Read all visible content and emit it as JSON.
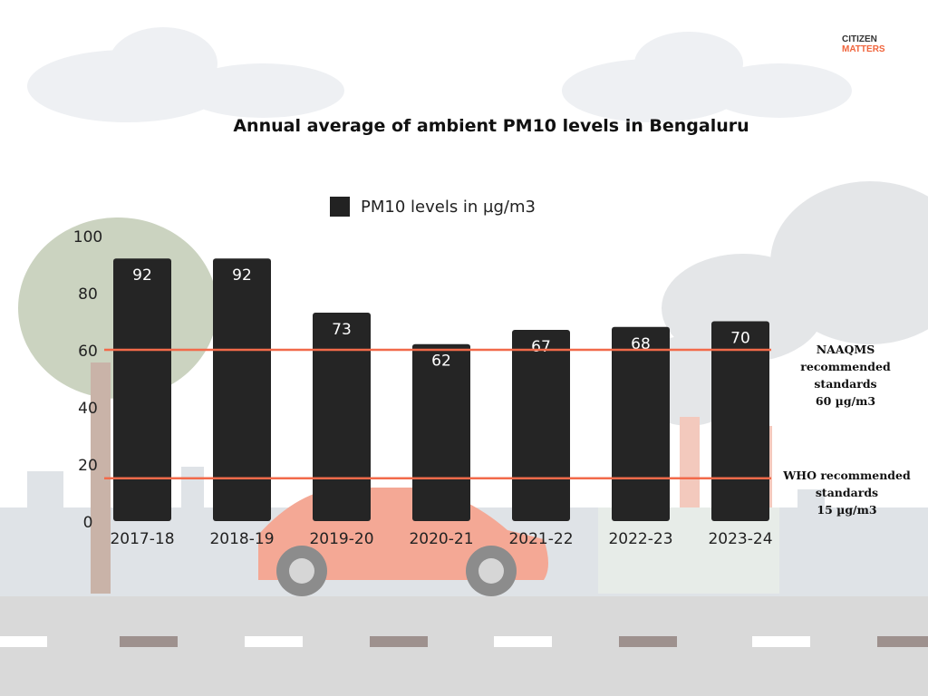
{
  "logo": {
    "line1": "CITIZEN",
    "line2": "MATTERS"
  },
  "colors": {
    "bar": "#252525",
    "reference_line": "#f26a4a",
    "bar_label": "#ffffff",
    "logo_accent": "#f0643c"
  },
  "chart_data": {
    "type": "bar",
    "title": "Annual average of ambient PM10 levels in Bengaluru",
    "legend": {
      "label": "PM10 levels in µg/m3",
      "placement": "top"
    },
    "categories": [
      "2017-18",
      "2018-19",
      "2019-20",
      "2020-21",
      "2021-22",
      "2022-23",
      "2023-24"
    ],
    "series": [
      {
        "name": "PM10 levels in µg/m3",
        "values": [
          92,
          92,
          73,
          62,
          67,
          68,
          70
        ]
      }
    ],
    "ylim": [
      0,
      100
    ],
    "yticks": [
      0,
      20,
      40,
      60,
      80,
      100
    ],
    "grid": false,
    "reference_lines": [
      {
        "value": 60,
        "label": [
          "NAAQMS",
          "recommended",
          "standards",
          "60 µg/m3"
        ]
      },
      {
        "value": 15,
        "label": [
          "WHO recommended",
          "standards",
          "15 µg/m3"
        ]
      }
    ]
  }
}
